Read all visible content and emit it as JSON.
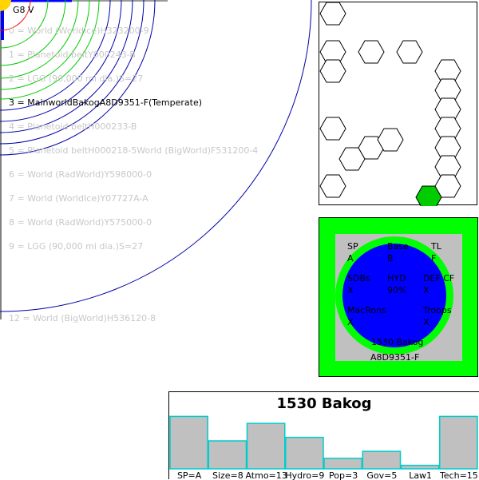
{
  "system": {
    "star_label": "G8 V",
    "orbits": [
      {
        "label": "0 = World  (WorldIce)H323200-9"
      },
      {
        "label": "1 = Planetoid beltY000243-B"
      },
      {
        "label": "2 = LGG (90,000 mi dia.)S=27"
      },
      {
        "label": "3 = MainworldBakogA8D9351-F(Temperate)",
        "mainworld": true
      },
      {
        "label": "4 = Planetoid beltH000233-B"
      },
      {
        "label": "5 = Planetoid beltH000218-5World  (BigWorld)F531200-4"
      },
      {
        "label": "6 = World  (RadWorld)Y598000-0"
      },
      {
        "label": "7 = World  (WorldIce)Y07727A-A"
      },
      {
        "label": "8 = World  (RadWorld)Y575000-0"
      },
      {
        "label": "9 = LGG (90,000 mi dia.)S=27"
      },
      {
        "label": "12 = World  (BigWorld)H536120-8"
      }
    ],
    "colors": {
      "star": "#ffd400",
      "hot_orbit": "#ff0000",
      "habitable_orbit": "#00cc00",
      "cold_orbit": "#0000aa",
      "top_bar": "#0000ff"
    }
  },
  "hex_map": {
    "hexes": [
      {
        "col": 0,
        "row": 0
      },
      {
        "col": 0,
        "row": 2
      },
      {
        "col": 0,
        "row": 3
      },
      {
        "col": 2,
        "row": 2
      },
      {
        "col": 0,
        "row": 6
      },
      {
        "col": 1,
        "row": 7
      },
      {
        "col": 2,
        "row": 7
      },
      {
        "col": 3,
        "row": 6
      },
      {
        "col": 0,
        "row": 9
      },
      {
        "col": 4,
        "row": 2
      },
      {
        "col": 6,
        "row": 3
      },
      {
        "col": 6,
        "row": 4
      },
      {
        "col": 6,
        "row": 5
      },
      {
        "col": 6,
        "row": 6
      },
      {
        "col": 6,
        "row": 7
      },
      {
        "col": 6,
        "row": 8
      },
      {
        "col": 5,
        "row": 9,
        "highlight": true
      },
      {
        "col": 6,
        "row": 9
      }
    ],
    "colors": {
      "hex_stroke": "#000000",
      "highlight_fill": "#00cc00"
    }
  },
  "mainworld_card": {
    "sp_label": "SP",
    "sp_value": "A",
    "base_label": "Base",
    "base_value": "B",
    "tl_label": "TL",
    "tl_value": "F",
    "sdbs_label": "SDBs",
    "sdbs_value": "X",
    "hyd_label": "HYD",
    "hyd_value": "90%",
    "def_label": "DEF CF",
    "def_value": "X",
    "mar_label": "MacRons",
    "mar_value": "X",
    "troops_label": "Troops",
    "troops_value": "X",
    "name": "1530 Bakog",
    "uwp": "A8D9351-F",
    "colors": {
      "outer": "#00ff00",
      "inner": "#c0c0c0",
      "ring": "#00ff00",
      "ocean": "#0000ff"
    }
  },
  "chart_data": {
    "type": "bar",
    "title": "1530 Bakog",
    "categories": [
      "SP=A",
      "Size=8",
      "Atmo=13",
      "Hydro=9",
      "Pop=3",
      "Gov=5",
      "Law1",
      "Tech=15"
    ],
    "values": [
      15,
      8,
      13,
      9,
      3,
      5,
      1,
      15
    ],
    "ylim": [
      0,
      16
    ],
    "bar_fill": "#c0c0c0",
    "bar_stroke": "#00cccc"
  }
}
